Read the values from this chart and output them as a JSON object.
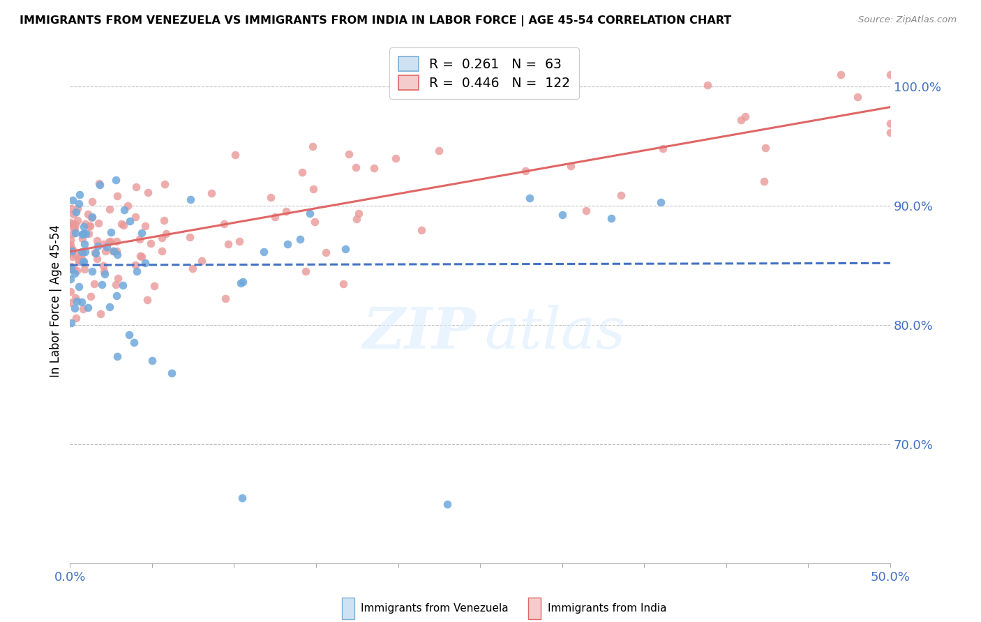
{
  "title": "IMMIGRANTS FROM VENEZUELA VS IMMIGRANTS FROM INDIA IN LABOR FORCE | AGE 45-54 CORRELATION CHART",
  "source": "Source: ZipAtlas.com",
  "ylabel": "In Labor Force | Age 45-54",
  "xlim": [
    0.0,
    0.5
  ],
  "ylim": [
    0.6,
    1.04
  ],
  "yticks_right": [
    0.7,
    0.8,
    0.9,
    1.0
  ],
  "ytick_right_labels": [
    "70.0%",
    "80.0%",
    "90.0%",
    "100.0%"
  ],
  "color_venezuela": "#6fa8dc",
  "color_india": "#ea9999",
  "trendline_venezuela_color": "#4472c4",
  "trendline_india_color": "#e06666",
  "R_venezuela": 0.261,
  "N_venezuela": 63,
  "R_india": 0.446,
  "N_india": 122,
  "legend_box_color_venezuela": "#cfe2f3",
  "legend_box_color_india": "#f4cccc",
  "axis_color": "#4472c4",
  "grid_color": "#c0c0c0"
}
